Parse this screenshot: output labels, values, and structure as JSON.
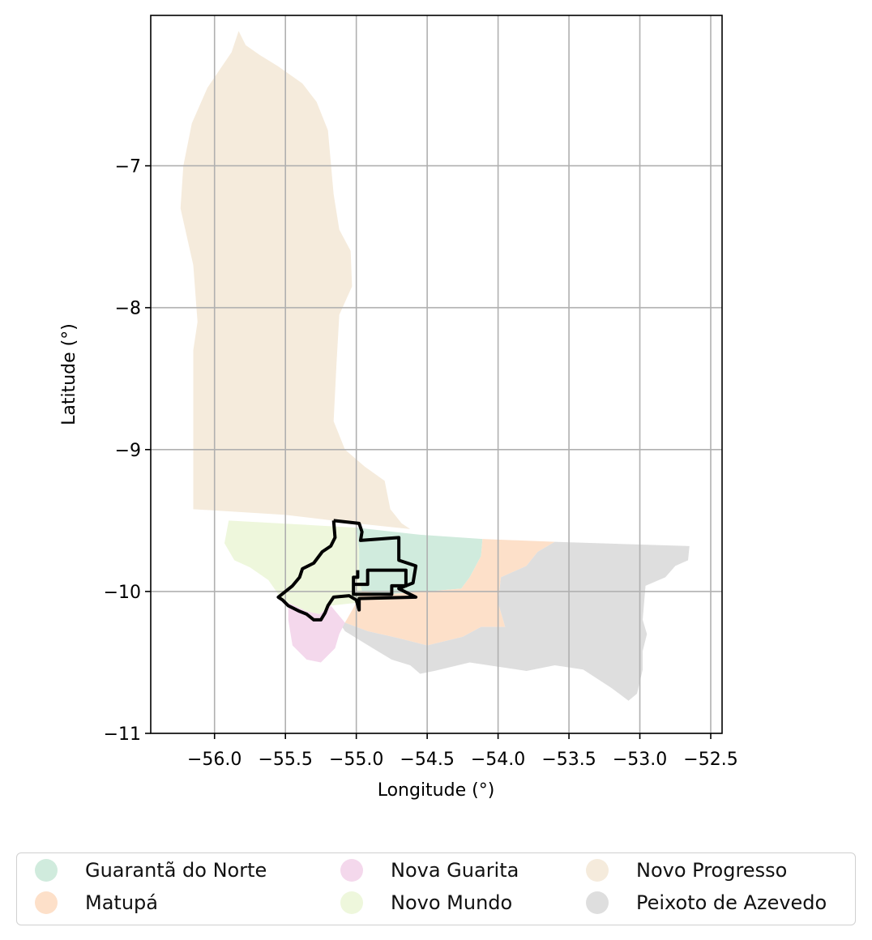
{
  "chart_data": {
    "type": "map",
    "xlabel": "Longitude (°)",
    "ylabel": "Latitude (°)",
    "xlim": [
      -56.45,
      -52.42
    ],
    "ylim": [
      -11.0,
      -5.94
    ],
    "grid": true,
    "xticks": [
      {
        "value": -56.0,
        "label": "−56.0"
      },
      {
        "value": -55.5,
        "label": "−55.5"
      },
      {
        "value": -55.0,
        "label": "−55.0"
      },
      {
        "value": -54.5,
        "label": "−54.5"
      },
      {
        "value": -54.0,
        "label": "−54.0"
      },
      {
        "value": -53.5,
        "label": "−53.5"
      },
      {
        "value": -53.0,
        "label": "−53.0"
      },
      {
        "value": -52.5,
        "label": "−52.5"
      }
    ],
    "yticks": [
      {
        "value": -7,
        "label": "−7"
      },
      {
        "value": -8,
        "label": "−8"
      },
      {
        "value": -9,
        "label": "−9"
      },
      {
        "value": -10,
        "label": "−10"
      },
      {
        "value": -11,
        "label": "−11"
      }
    ],
    "legend_placement": "bottom-center",
    "regions": [
      {
        "name": "Novo Progresso",
        "color": "#f5ebdc",
        "polygon": [
          [
            -56.15,
            -9.42
          ],
          [
            -56.15,
            -8.3
          ],
          [
            -56.12,
            -8.1
          ],
          [
            -56.15,
            -7.7
          ],
          [
            -56.24,
            -7.3
          ],
          [
            -56.22,
            -7.0
          ],
          [
            -56.16,
            -6.7
          ],
          [
            -56.05,
            -6.45
          ],
          [
            -55.88,
            -6.2
          ],
          [
            -55.83,
            -6.05
          ],
          [
            -55.78,
            -6.15
          ],
          [
            -55.68,
            -6.22
          ],
          [
            -55.55,
            -6.3
          ],
          [
            -55.38,
            -6.42
          ],
          [
            -55.28,
            -6.55
          ],
          [
            -55.2,
            -6.75
          ],
          [
            -55.16,
            -7.2
          ],
          [
            -55.12,
            -7.45
          ],
          [
            -55.04,
            -7.6
          ],
          [
            -55.03,
            -7.85
          ],
          [
            -55.12,
            -8.05
          ],
          [
            -55.14,
            -8.4
          ],
          [
            -55.16,
            -8.8
          ],
          [
            -55.08,
            -9.0
          ],
          [
            -54.94,
            -9.12
          ],
          [
            -54.8,
            -9.22
          ],
          [
            -54.76,
            -9.42
          ],
          [
            -54.68,
            -9.52
          ],
          [
            -54.62,
            -9.56
          ],
          [
            -55.0,
            -9.52
          ],
          [
            -55.5,
            -9.46
          ]
        ]
      },
      {
        "name": "Novo Mundo",
        "color": "#eef7dc",
        "polygon": [
          [
            -55.9,
            -9.5
          ],
          [
            -55.0,
            -9.55
          ],
          [
            -54.98,
            -9.7
          ],
          [
            -54.98,
            -9.9
          ],
          [
            -54.96,
            -10.0
          ],
          [
            -55.0,
            -10.08
          ],
          [
            -55.18,
            -10.1
          ],
          [
            -55.26,
            -10.16
          ],
          [
            -55.35,
            -10.14
          ],
          [
            -55.48,
            -10.08
          ],
          [
            -55.55,
            -10.02
          ],
          [
            -55.62,
            -9.92
          ],
          [
            -55.75,
            -9.83
          ],
          [
            -55.86,
            -9.78
          ],
          [
            -55.93,
            -9.66
          ]
        ]
      },
      {
        "name": "Guarantã do Norte",
        "color": "#d0ebdd",
        "polygon": [
          [
            -55.0,
            -9.55
          ],
          [
            -54.55,
            -9.6
          ],
          [
            -54.11,
            -9.63
          ],
          [
            -54.12,
            -9.75
          ],
          [
            -54.2,
            -9.9
          ],
          [
            -54.26,
            -9.98
          ],
          [
            -54.5,
            -10.0
          ],
          [
            -54.8,
            -10.02
          ],
          [
            -54.96,
            -10.0
          ],
          [
            -54.98,
            -9.9
          ],
          [
            -54.98,
            -9.7
          ]
        ]
      },
      {
        "name": "Matupá",
        "color": "#fde0c9",
        "polygon": [
          [
            -54.11,
            -9.63
          ],
          [
            -53.6,
            -9.65
          ],
          [
            -53.72,
            -9.72
          ],
          [
            -53.8,
            -9.82
          ],
          [
            -53.98,
            -9.9
          ],
          [
            -54.0,
            -10.08
          ],
          [
            -53.95,
            -10.25
          ],
          [
            -54.12,
            -10.25
          ],
          [
            -54.25,
            -10.32
          ],
          [
            -54.5,
            -10.38
          ],
          [
            -54.7,
            -10.33
          ],
          [
            -54.92,
            -10.28
          ],
          [
            -55.08,
            -10.22
          ],
          [
            -55.0,
            -10.08
          ],
          [
            -54.96,
            -10.0
          ],
          [
            -54.8,
            -10.02
          ],
          [
            -54.5,
            -10.0
          ],
          [
            -54.26,
            -9.98
          ],
          [
            -54.2,
            -9.9
          ],
          [
            -54.12,
            -9.75
          ]
        ]
      },
      {
        "name": "Peixoto de Azevedo",
        "color": "#dedede",
        "polygon": [
          [
            -53.6,
            -9.65
          ],
          [
            -52.65,
            -9.68
          ],
          [
            -52.66,
            -9.78
          ],
          [
            -52.75,
            -9.82
          ],
          [
            -52.82,
            -9.9
          ],
          [
            -52.96,
            -9.96
          ],
          [
            -52.98,
            -10.2
          ],
          [
            -52.95,
            -10.3
          ],
          [
            -52.98,
            -10.42
          ],
          [
            -52.98,
            -10.55
          ],
          [
            -53.02,
            -10.72
          ],
          [
            -53.08,
            -10.77
          ],
          [
            -53.2,
            -10.68
          ],
          [
            -53.4,
            -10.55
          ],
          [
            -53.6,
            -10.52
          ],
          [
            -53.8,
            -10.56
          ],
          [
            -54.0,
            -10.53
          ],
          [
            -54.2,
            -10.5
          ],
          [
            -54.45,
            -10.56
          ],
          [
            -54.55,
            -10.58
          ],
          [
            -54.62,
            -10.52
          ],
          [
            -54.75,
            -10.48
          ],
          [
            -54.85,
            -10.42
          ],
          [
            -54.95,
            -10.36
          ],
          [
            -55.08,
            -10.28
          ],
          [
            -55.12,
            -10.22
          ],
          [
            -55.08,
            -10.22
          ],
          [
            -54.92,
            -10.28
          ],
          [
            -54.7,
            -10.33
          ],
          [
            -54.5,
            -10.38
          ],
          [
            -54.25,
            -10.32
          ],
          [
            -54.12,
            -10.25
          ],
          [
            -53.95,
            -10.25
          ],
          [
            -54.0,
            -10.08
          ],
          [
            -53.98,
            -9.9
          ],
          [
            -53.8,
            -9.82
          ],
          [
            -53.72,
            -9.72
          ]
        ]
      },
      {
        "name": "Nova Guarita",
        "color": "#f4d8ec",
        "polygon": [
          [
            -55.48,
            -10.08
          ],
          [
            -55.35,
            -10.14
          ],
          [
            -55.26,
            -10.16
          ],
          [
            -55.18,
            -10.1
          ],
          [
            -55.08,
            -10.22
          ],
          [
            -55.12,
            -10.3
          ],
          [
            -55.15,
            -10.4
          ],
          [
            -55.25,
            -10.5
          ],
          [
            -55.35,
            -10.48
          ],
          [
            -55.45,
            -10.38
          ],
          [
            -55.48,
            -10.2
          ]
        ]
      }
    ],
    "outlines": [
      [
        [
          -55.16,
          -9.5
        ],
        [
          -54.98,
          -9.52
        ],
        [
          -54.96,
          -9.58
        ],
        [
          -54.97,
          -9.64
        ],
        [
          -54.7,
          -9.62
        ],
        [
          -54.7,
          -9.78
        ],
        [
          -54.58,
          -9.82
        ],
        [
          -54.6,
          -9.94
        ],
        [
          -54.7,
          -9.98
        ],
        [
          -54.58,
          -10.04
        ],
        [
          -54.98,
          -10.05
        ],
        [
          -54.98,
          -10.13
        ],
        [
          -55.0,
          -10.06
        ],
        [
          -55.05,
          -10.03
        ],
        [
          -55.16,
          -10.04
        ],
        [
          -55.2,
          -10.1
        ],
        [
          -55.22,
          -10.15
        ],
        [
          -55.25,
          -10.2
        ],
        [
          -55.3,
          -10.2
        ],
        [
          -55.35,
          -10.16
        ],
        [
          -55.4,
          -10.14
        ],
        [
          -55.48,
          -10.1
        ],
        [
          -55.52,
          -10.06
        ],
        [
          -55.55,
          -10.04
        ],
        [
          -55.5,
          -10.0
        ],
        [
          -55.45,
          -9.96
        ],
        [
          -55.4,
          -9.9
        ],
        [
          -55.38,
          -9.84
        ],
        [
          -55.3,
          -9.8
        ],
        [
          -55.24,
          -9.72
        ],
        [
          -55.18,
          -9.68
        ],
        [
          -55.15,
          -9.62
        ],
        [
          -55.16,
          -9.5
        ]
      ],
      [
        [
          -55.02,
          -9.9
        ],
        [
          -55.02,
          -9.95
        ],
        [
          -54.92,
          -9.95
        ],
        [
          -54.92,
          -9.85
        ],
        [
          -54.78,
          -9.85
        ],
        [
          -54.65,
          -9.85
        ],
        [
          -54.65,
          -9.96
        ],
        [
          -54.75,
          -9.96
        ],
        [
          -54.75,
          -10.02
        ],
        [
          -55.02,
          -10.02
        ],
        [
          -55.02,
          -9.9
        ],
        [
          -54.99,
          -9.9
        ],
        [
          -54.99,
          -9.85
        ]
      ]
    ]
  },
  "legend": {
    "items": [
      {
        "label": "Guarantã do Norte",
        "color": "#d0ebdd"
      },
      {
        "label": "Matupá",
        "color": "#fde0c9"
      },
      {
        "label": "Nova Guarita",
        "color": "#f4d8ec"
      },
      {
        "label": "Novo Mundo",
        "color": "#eef7dc"
      },
      {
        "label": "Novo Progresso",
        "color": "#f5ebdc"
      },
      {
        "label": "Peixoto de Azevedo",
        "color": "#dedede"
      }
    ]
  }
}
